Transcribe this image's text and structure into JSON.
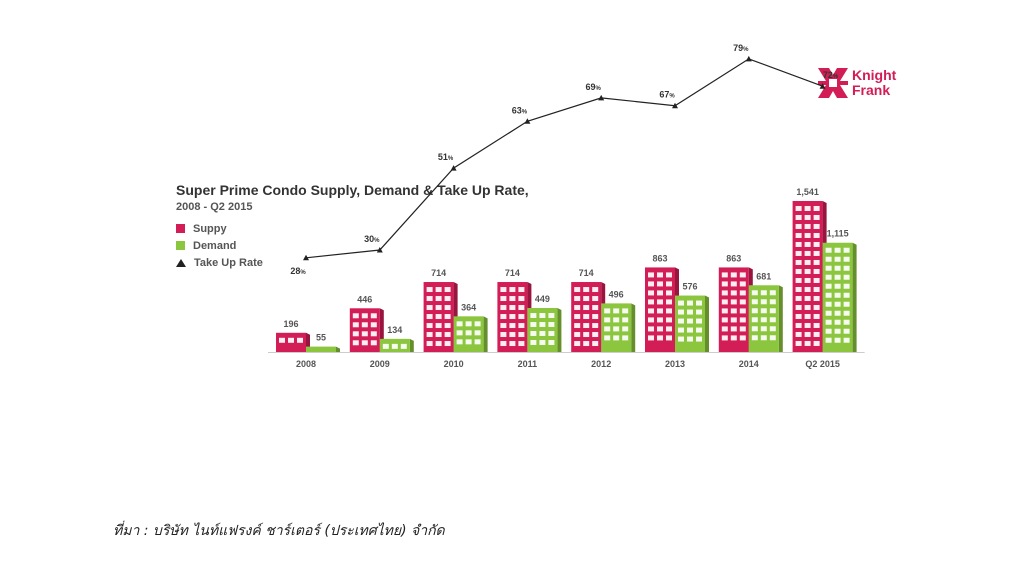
{
  "logo": {
    "line1": "Knight",
    "line2": "Frank"
  },
  "chart_data": {
    "type": "bar",
    "title": "Super Prime Condo Supply, Demand & Take Up Rate,",
    "subtitle": "2008 - Q2 2015",
    "categories": [
      "2008",
      "2009",
      "2010",
      "2011",
      "2012",
      "2013",
      "2014",
      "Q2 2015"
    ],
    "series": [
      {
        "name": "Suppy",
        "values": [
          196,
          446,
          714,
          714,
          714,
          863,
          863,
          1541
        ],
        "labels": [
          "196",
          "446",
          "714",
          "714",
          "714",
          "863",
          "863",
          "1,541"
        ],
        "color": "#d21d56"
      },
      {
        "name": "Demand",
        "values": [
          55,
          134,
          364,
          449,
          496,
          576,
          681,
          1115
        ],
        "labels": [
          "55",
          "134",
          "364",
          "449",
          "496",
          "576",
          "681",
          "1,115"
        ],
        "color": "#8cc63f"
      }
    ],
    "line_series": {
      "name": "Take Up Rate",
      "values": [
        28,
        30,
        51,
        63,
        69,
        67,
        79,
        72
      ],
      "unit": "%",
      "color": "#222222"
    },
    "legend_position": "top-left",
    "grid": false
  },
  "source_text": "ที่มา : บริษัท ไนท์แฟรงค์ ชาร์เตอร์ (ประเทศไทย) จำกัด"
}
